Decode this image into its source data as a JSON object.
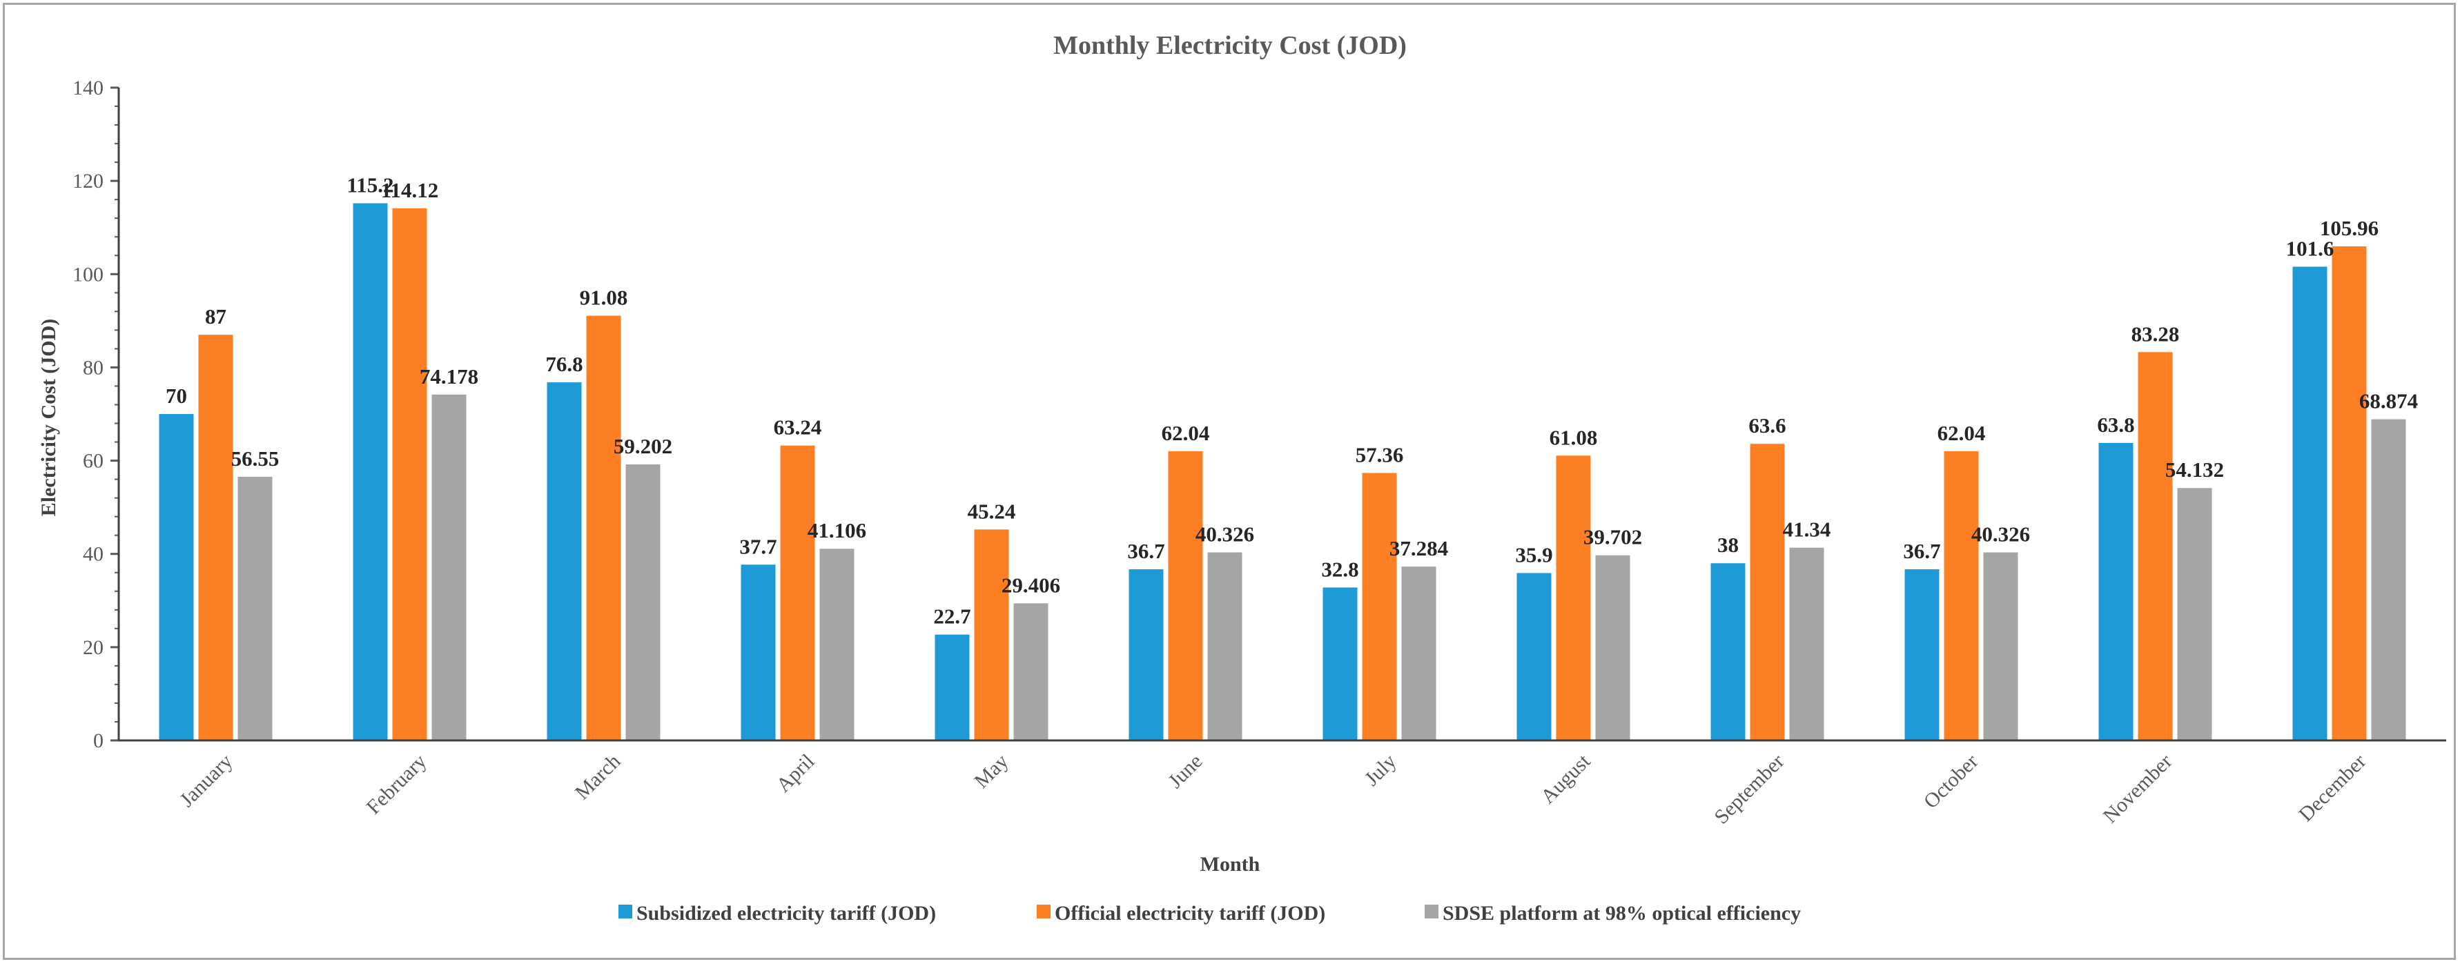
{
  "chart_data": {
    "type": "bar",
    "title": "Monthly Electricity Cost (JOD)",
    "xlabel": "Month",
    "ylabel": "Electricity Cost (JOD)",
    "ylim": [
      0,
      140
    ],
    "yticks": [
      0,
      20,
      40,
      60,
      80,
      100,
      120,
      140
    ],
    "ytick_labels": [
      "0",
      "20",
      "40",
      "60",
      "80",
      "100",
      "120",
      "140"
    ],
    "grid": false,
    "legend_position": "bottom",
    "categories": [
      "January",
      "February",
      "March",
      "April",
      "May",
      "June",
      "July",
      "August",
      "September",
      "October",
      "November",
      "December"
    ],
    "series": [
      {
        "name": "Subsidized electricity tariff (JOD)",
        "color": "#1e9bd7",
        "values": [
          70,
          115.2,
          76.8,
          37.7,
          22.7,
          36.7,
          32.8,
          35.9,
          38,
          36.7,
          63.8,
          101.6
        ],
        "labels": [
          "70",
          "115.2",
          "76.8",
          "37.7",
          "22.7",
          "36.7",
          "32.8",
          "35.9",
          "38",
          "36.7",
          "63.8",
          "101.6"
        ]
      },
      {
        "name": "Official electricity tariff (JOD)",
        "color": "#fd7f23",
        "values": [
          87,
          114.12,
          91.08,
          63.24,
          45.24,
          62.04,
          57.36,
          61.08,
          63.6,
          62.04,
          83.28,
          105.96
        ],
        "labels": [
          "87",
          "114.12",
          "91.08",
          "63.24",
          "45.24",
          "62.04",
          "57.36",
          "61.08",
          "63.6",
          "62.04",
          "83.28",
          "105.96"
        ]
      },
      {
        "name": "SDSE platform at 98% optical efficiency",
        "color": "#a5a5a5",
        "values": [
          56.55,
          74.178,
          59.202,
          41.106,
          29.406,
          40.326,
          37.284,
          39.702,
          41.34,
          40.326,
          54.132,
          68.874
        ],
        "labels": [
          "56.55",
          "74.178",
          "59.202",
          "41.106",
          "29.406",
          "40.326",
          "37.284",
          "39.702",
          "41.34",
          "40.326",
          "54.132",
          "68.874"
        ]
      }
    ]
  }
}
